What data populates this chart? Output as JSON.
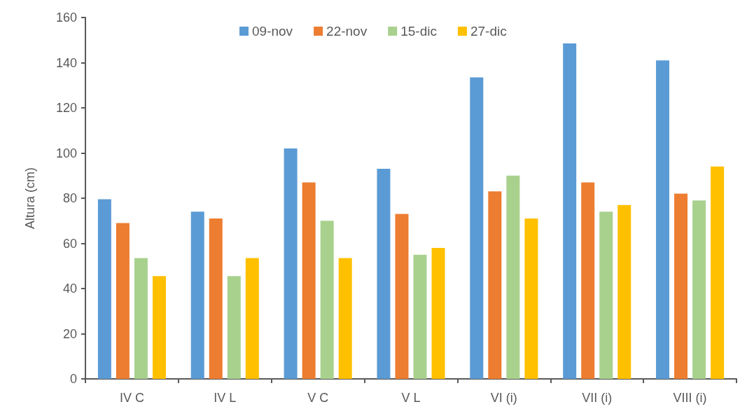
{
  "chart_data": {
    "type": "bar",
    "ylabel": "Altura (cm)",
    "categories": [
      "IV C",
      "IV L",
      "V C",
      "V L",
      "VI (i)",
      "VII (i)",
      "VIII (i)"
    ],
    "series": [
      {
        "name": "09-nov",
        "color": "#5b9bd5",
        "values": [
          79.5,
          74,
          102,
          93,
          133.5,
          148.5,
          141
        ]
      },
      {
        "name": "22-nov",
        "color": "#ed7d31",
        "values": [
          69,
          71,
          87,
          73,
          83,
          87,
          82
        ]
      },
      {
        "name": "15-dic",
        "color": "#a9d18e",
        "values": [
          53.5,
          45.5,
          70,
          55,
          90,
          74,
          79
        ]
      },
      {
        "name": "27-dic",
        "color": "#ffc000",
        "values": [
          45.5,
          53.5,
          53.5,
          58,
          71,
          77,
          94
        ]
      }
    ],
    "ylim": [
      0,
      160
    ],
    "yticks": [
      0,
      20,
      40,
      60,
      80,
      100,
      120,
      140,
      160
    ],
    "grid": false,
    "legend": "top"
  }
}
